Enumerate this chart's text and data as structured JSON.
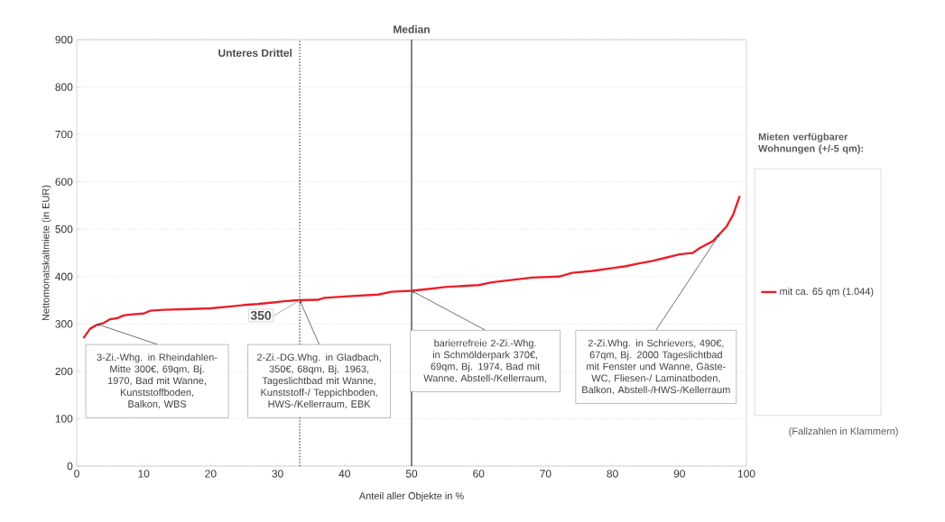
{
  "chart_data": {
    "type": "line",
    "xlabel": "Anteil aller Objekte in %",
    "ylabel": "Nettomonatskaltmiete (in EUR)",
    "legend_title": "Mieten verfügbarer Wohnungen (+/-5 qm):",
    "x": [
      1,
      2,
      3,
      4,
      5,
      6,
      7,
      8,
      10,
      11,
      13,
      16,
      20,
      23,
      25,
      27,
      29,
      31,
      33,
      36,
      37,
      40,
      45,
      47,
      50,
      52,
      55,
      60,
      62,
      65,
      68,
      72,
      74,
      77,
      80,
      82,
      84,
      86,
      88,
      90,
      92,
      93,
      95,
      96,
      97,
      98,
      99
    ],
    "series": [
      {
        "name": "mit ca. 65 qm (1.044)",
        "color": "#e8202a",
        "values": [
          270,
          290,
          298,
          302,
          310,
          312,
          318,
          320,
          322,
          328,
          330,
          331,
          333,
          337,
          340,
          342,
          345,
          348,
          350,
          351,
          355,
          358,
          362,
          368,
          370,
          373,
          378,
          382,
          388,
          393,
          398,
          400,
          408,
          412,
          418,
          422,
          428,
          433,
          440,
          447,
          450,
          460,
          475,
          490,
          505,
          530,
          570
        ]
      }
    ],
    "xlim": [
      0,
      100
    ],
    "ylim": [
      0,
      900
    ],
    "xticks": [
      0,
      10,
      20,
      30,
      40,
      50,
      60,
      70,
      80,
      90,
      100
    ],
    "yticks": [
      0,
      100,
      200,
      300,
      400,
      500,
      600,
      700,
      800,
      900
    ],
    "grid": "y",
    "legend": "right",
    "marker": "none",
    "line_style": "solid",
    "ref_lines": [
      {
        "axis": "x",
        "value": 33.3,
        "label": "Unteres Drittel",
        "line_style": "dotted",
        "color": "#404040"
      },
      {
        "axis": "x",
        "value": 50,
        "label": "Median",
        "line_style": "solid",
        "color": "#404040"
      }
    ],
    "annotations": [
      {
        "text": "350",
        "x": 33.3,
        "y": 350
      },
      {
        "text": "3-Zi.-Whg. in Rheindahlen-Mitte 300€, 69qm, Bj. 1970, Bad mit Wanne, Kunststoffboden, Balkon, WBS",
        "x": 3,
        "y": 300
      },
      {
        "text": "2-Zi.-DG.Whg. in Gladbach, 350€, 68qm, Bj. 1963, Tageslichtbad mit Wanne, Kunststoff-/ Teppichboden, HWS-/Kellerraum, EBK",
        "x": 33.3,
        "y": 350
      },
      {
        "text": "barierrefreie 2-Zi.-Whg. in Schmölderpark 370€, 69qm, Bj. 1974, Bad mit Wanne, Abstell-/Kellerraum,",
        "x": 50,
        "y": 370
      },
      {
        "text": "2-Zi.Whg. in Schrievers, 490€, 67qm, Bj. 2000 Tageslichtbad mit Fenster und Wanne, Gäste-WC, Fliesen-/ Laminatboden, Balkon, Abstell-/HWS-/Kellerraum",
        "x": 96,
        "y": 490
      },
      "(Fallzahlen in Klammern)"
    ]
  }
}
